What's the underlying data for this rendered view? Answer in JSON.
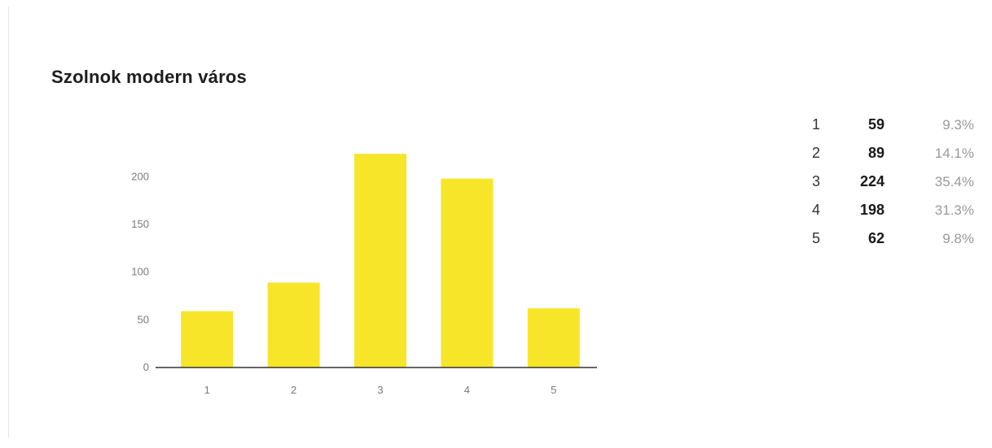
{
  "chart_data": {
    "type": "bar",
    "title": "Szolnok modern város",
    "xlabel": "",
    "ylabel": "",
    "categories": [
      "1",
      "2",
      "3",
      "4",
      "5"
    ],
    "values": [
      59,
      89,
      224,
      198,
      62
    ],
    "ylim": [
      0,
      225
    ],
    "yticks": [
      0,
      50,
      100,
      150,
      200
    ],
    "grid": false,
    "legend": "none",
    "bar_color": "#f7e52a",
    "axis_color": "#333333"
  },
  "summary": {
    "rows": [
      {
        "category": "1",
        "count": "59",
        "percent": "9.3%"
      },
      {
        "category": "2",
        "count": "89",
        "percent": "14.1%"
      },
      {
        "category": "3",
        "count": "224",
        "percent": "35.4%"
      },
      {
        "category": "4",
        "count": "198",
        "percent": "31.3%"
      },
      {
        "category": "5",
        "count": "62",
        "percent": "9.8%"
      }
    ]
  }
}
